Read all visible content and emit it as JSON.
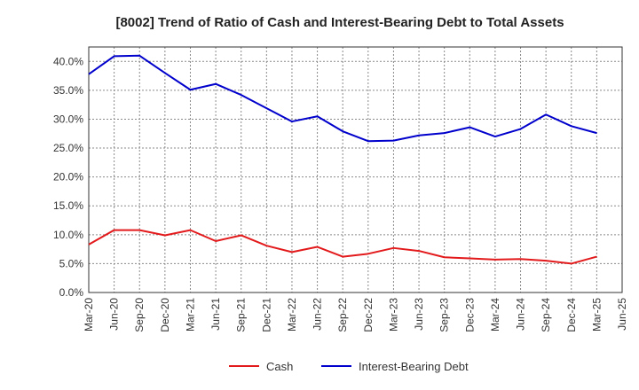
{
  "chart_data": {
    "type": "line",
    "title": "[8002]  Trend of Ratio of Cash and Interest-Bearing Debt to Total Assets",
    "xlabel": "",
    "ylabel": "",
    "x_ticks": [
      "Mar-20",
      "Jun-20",
      "Sep-20",
      "Dec-20",
      "Mar-21",
      "Jun-21",
      "Sep-21",
      "Dec-21",
      "Mar-22",
      "Jun-22",
      "Sep-22",
      "Dec-22",
      "Mar-23",
      "Jun-23",
      "Sep-23",
      "Dec-23",
      "Mar-24",
      "Jun-24",
      "Sep-24",
      "Dec-24",
      "Mar-25",
      "Jun-25"
    ],
    "y_ticks": [
      "0.0%",
      "5.0%",
      "10.0%",
      "15.0%",
      "20.0%",
      "25.0%",
      "30.0%",
      "35.0%",
      "40.0%"
    ],
    "ylim": [
      0,
      42.5
    ],
    "grid": true,
    "legend_position": "bottom",
    "series": [
      {
        "name": "Cash",
        "color": "#e31a1c",
        "x": [
          "Mar-20",
          "Jun-20",
          "Sep-20",
          "Dec-20",
          "Mar-21",
          "Jun-21",
          "Sep-21",
          "Dec-21",
          "Mar-22",
          "Jun-22",
          "Sep-22",
          "Dec-22",
          "Mar-23",
          "Jun-23",
          "Sep-23",
          "Dec-23",
          "Mar-24",
          "Jun-24",
          "Sep-24",
          "Dec-24",
          "Mar-25"
        ],
        "values": [
          8.3,
          10.8,
          10.8,
          9.9,
          10.8,
          8.9,
          9.9,
          8.1,
          7.0,
          7.9,
          6.2,
          6.7,
          7.7,
          7.2,
          6.1,
          5.9,
          5.7,
          5.8,
          5.5,
          5.0,
          6.2
        ]
      },
      {
        "name": "Interest-Bearing Debt",
        "color": "#0000cc",
        "x": [
          "Mar-20",
          "Jun-20",
          "Sep-20",
          "Dec-20",
          "Mar-21",
          "Jun-21",
          "Sep-21",
          "Dec-21",
          "Mar-22",
          "Jun-22",
          "Sep-22",
          "Dec-22",
          "Mar-23",
          "Jun-23",
          "Sep-23",
          "Dec-23",
          "Mar-24",
          "Jun-24",
          "Sep-24",
          "Dec-24",
          "Mar-25"
        ],
        "values": [
          37.8,
          40.9,
          41.0,
          38.0,
          35.1,
          36.1,
          34.2,
          31.9,
          29.6,
          30.5,
          27.9,
          26.2,
          26.3,
          27.2,
          27.6,
          28.6,
          27.0,
          28.3,
          30.8,
          28.8,
          27.6
        ]
      }
    ]
  }
}
